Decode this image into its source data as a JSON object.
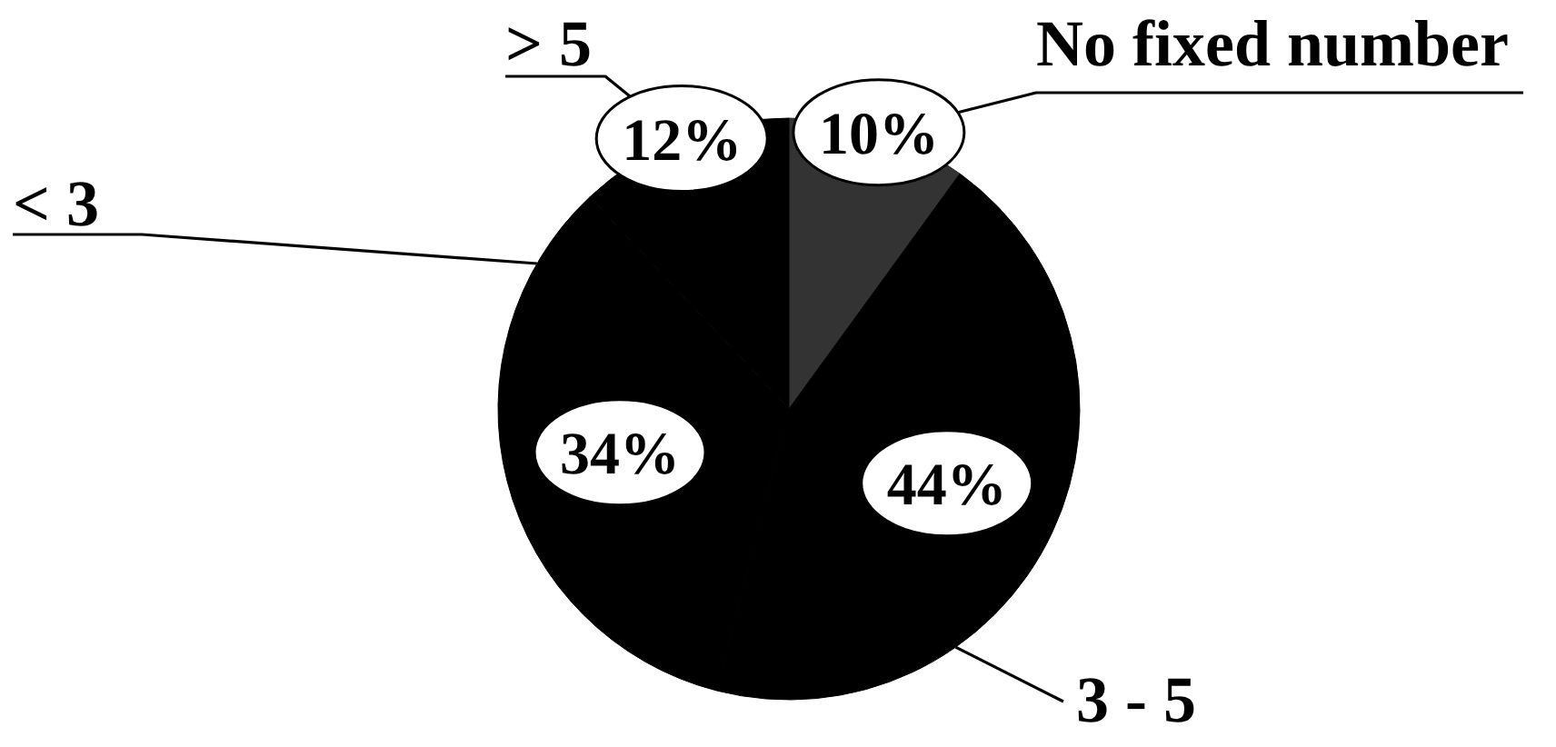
{
  "chart_data": {
    "type": "pie",
    "categories": [
      "No fixed number",
      "3 - 5",
      "< 3",
      "> 5"
    ],
    "values": [
      10,
      44,
      34,
      12
    ],
    "colors": [
      "#333333",
      "#000000",
      "#000000",
      "#000000"
    ],
    "value_labels": [
      "10%",
      "44%",
      "34%",
      "12%"
    ]
  }
}
